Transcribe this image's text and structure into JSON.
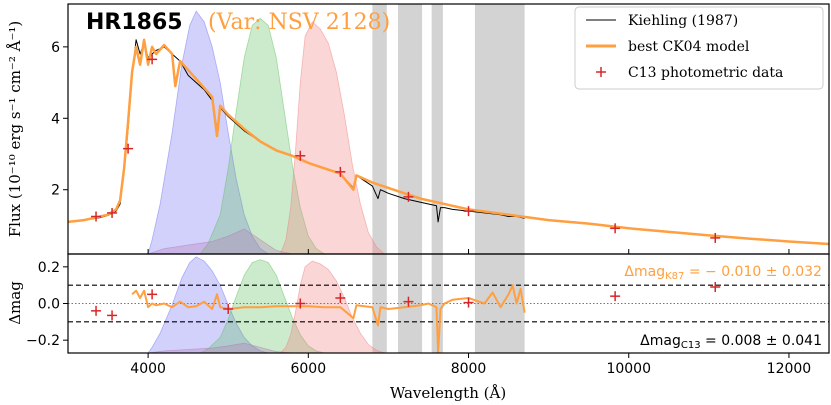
{
  "chart_data": {
    "type": "line",
    "title": "HR1865",
    "subtitle": "(Var: NSV 2128)",
    "xlabel": "Wavelength  (Å)",
    "top_ylabel": "Flux  (10⁻¹⁰ erg s⁻¹ cm⁻² Å⁻¹)",
    "bottom_ylabel": "Δmag",
    "xlim": [
      3000,
      12500
    ],
    "top_ylim": [
      0.2,
      7.2
    ],
    "bottom_ylim": [
      -0.27,
      0.27
    ],
    "x_ticks": [
      4000,
      6000,
      8000,
      10000,
      12000
    ],
    "x_tick_labels": [
      "4000",
      "6000",
      "8000",
      "10000",
      "12000"
    ],
    "top_y_ticks": [
      2,
      4,
      6
    ],
    "top_y_tick_labels": [
      "2",
      "4",
      "6"
    ],
    "bottom_y_ticks": [
      -0.2,
      0.0,
      0.2
    ],
    "bottom_y_tick_labels": [
      "−0.2",
      "0.0",
      "0.2"
    ],
    "legend": {
      "placement": "top-right",
      "entries": [
        {
          "label": "Kiehling (1987)",
          "style": "thin-line",
          "color": "#000000"
        },
        {
          "label": "best CK04 model",
          "style": "thick-line",
          "color": "#ff9f40"
        },
        {
          "label": "C13 photometric data",
          "style": "plus-marker",
          "color": "#d62728"
        }
      ]
    },
    "annotations": {
      "dmag_k87": "Δmag",
      "dmag_k87_sub": "K87",
      "dmag_k87_value": " = − 0.010 ± 0.032",
      "dmag_c13": "Δmag",
      "dmag_c13_sub": "C13",
      "dmag_c13_value": " = 0.008 ± 0.041"
    },
    "residual_band": [
      -0.1,
      0.1
    ],
    "gray_bands": [
      [
        6800,
        6980
      ],
      [
        7120,
        7420
      ],
      [
        7540,
        7680
      ],
      [
        8080,
        8700
      ]
    ],
    "filters": [
      {
        "name": "blue",
        "color": "#6f6ff5",
        "points": [
          [
            4000,
            0.2
          ],
          [
            4050,
            0.6
          ],
          [
            4150,
            1.6
          ],
          [
            4300,
            3.6
          ],
          [
            4420,
            5.5
          ],
          [
            4520,
            6.6
          ],
          [
            4600,
            7.0
          ],
          [
            4700,
            6.7
          ],
          [
            4800,
            6.0
          ],
          [
            4900,
            5.0
          ],
          [
            5000,
            3.6
          ],
          [
            5100,
            2.3
          ],
          [
            5200,
            1.3
          ],
          [
            5300,
            0.7
          ],
          [
            5400,
            0.35
          ],
          [
            5500,
            0.2
          ]
        ]
      },
      {
        "name": "green",
        "color": "#5fbf5f",
        "points": [
          [
            4650,
            0.2
          ],
          [
            4750,
            0.5
          ],
          [
            4900,
            1.3
          ],
          [
            5000,
            2.6
          ],
          [
            5100,
            4.2
          ],
          [
            5200,
            5.7
          ],
          [
            5300,
            6.6
          ],
          [
            5400,
            6.8
          ],
          [
            5500,
            6.6
          ],
          [
            5600,
            5.7
          ],
          [
            5700,
            4.2
          ],
          [
            5800,
            2.7
          ],
          [
            5900,
            1.5
          ],
          [
            6000,
            0.7
          ],
          [
            6100,
            0.35
          ],
          [
            6200,
            0.2
          ]
        ]
      },
      {
        "name": "red",
        "color": "#f08080",
        "points": [
          [
            5650,
            0.2
          ],
          [
            5720,
            0.6
          ],
          [
            5780,
            1.5
          ],
          [
            5840,
            3.1
          ],
          [
            5900,
            5.0
          ],
          [
            5960,
            6.3
          ],
          [
            6050,
            6.7
          ],
          [
            6150,
            6.5
          ],
          [
            6250,
            6.1
          ],
          [
            6350,
            5.3
          ],
          [
            6450,
            4.1
          ],
          [
            6550,
            2.7
          ],
          [
            6650,
            1.6
          ],
          [
            6750,
            0.8
          ],
          [
            6850,
            0.4
          ],
          [
            6950,
            0.2
          ]
        ]
      },
      {
        "name": "violet",
        "color": "#b47ab4",
        "points": [
          [
            4000,
            0.2
          ],
          [
            4200,
            0.35
          ],
          [
            4500,
            0.45
          ],
          [
            4800,
            0.55
          ],
          [
            5000,
            0.7
          ],
          [
            5200,
            0.9
          ],
          [
            5400,
            0.6
          ],
          [
            5600,
            0.3
          ],
          [
            5800,
            0.2
          ]
        ]
      }
    ],
    "series": [
      {
        "name": "Kiehling (1987)",
        "color": "#000000",
        "x": [
          3200,
          3300,
          3400,
          3500,
          3600,
          3650,
          3700,
          3750,
          3800,
          3850,
          3900,
          3950,
          4000,
          4100,
          4200,
          4300,
          4400,
          4500,
          4600,
          4700,
          4800,
          4860,
          4900,
          5000,
          5200,
          5400,
          5600,
          5800,
          6000,
          6200,
          6400,
          6563,
          6600,
          6800,
          6870,
          6900,
          7000,
          7200,
          7400,
          7600,
          7620,
          7650,
          7700,
          7800,
          8000,
          8200,
          8400,
          8500,
          8600,
          8700
        ],
        "y": [
          1.15,
          1.18,
          1.22,
          1.28,
          1.4,
          1.6,
          2.5,
          3.7,
          5.2,
          6.2,
          5.8,
          6.1,
          5.7,
          5.9,
          6.0,
          5.8,
          5.6,
          5.2,
          5.0,
          4.8,
          4.5,
          3.7,
          4.3,
          4.05,
          3.65,
          3.35,
          3.1,
          2.95,
          2.75,
          2.6,
          2.45,
          2.05,
          2.4,
          2.1,
          1.75,
          2.0,
          1.9,
          1.75,
          1.65,
          1.55,
          1.1,
          1.5,
          1.5,
          1.45,
          1.4,
          1.35,
          1.3,
          1.25,
          1.25,
          1.2
        ]
      },
      {
        "name": "best CK04 model",
        "color": "#ff9f40",
        "x": [
          3000,
          3200,
          3300,
          3400,
          3500,
          3600,
          3650,
          3700,
          3750,
          3800,
          3850,
          3900,
          3950,
          4000,
          4050,
          4100,
          4200,
          4300,
          4340,
          4400,
          4500,
          4600,
          4700,
          4800,
          4860,
          4900,
          5000,
          5200,
          5400,
          5600,
          5800,
          6000,
          6200,
          6400,
          6563,
          6600,
          6800,
          7000,
          7200,
          7400,
          7600,
          7800,
          8000,
          8500,
          9000,
          9500,
          10000,
          10500,
          11000,
          11500,
          12000,
          12500
        ],
        "y": [
          1.1,
          1.15,
          1.2,
          1.25,
          1.3,
          1.45,
          1.7,
          2.6,
          3.9,
          5.3,
          6.0,
          5.5,
          6.2,
          5.5,
          6.0,
          5.8,
          6.05,
          5.8,
          4.9,
          5.6,
          5.35,
          5.1,
          4.85,
          4.6,
          3.5,
          4.35,
          4.1,
          3.7,
          3.35,
          3.1,
          2.95,
          2.75,
          2.6,
          2.45,
          2.0,
          2.4,
          2.2,
          2.05,
          1.9,
          1.75,
          1.65,
          1.55,
          1.45,
          1.3,
          1.15,
          1.05,
          0.92,
          0.82,
          0.72,
          0.63,
          0.55,
          0.48
        ]
      }
    ],
    "photometry": {
      "x": [
        3350,
        3550,
        3750,
        4050,
        5900,
        6400,
        7250,
        8000,
        9830,
        11080
      ],
      "y": [
        1.25,
        1.35,
        3.15,
        5.65,
        2.95,
        2.5,
        1.8,
        1.4,
        0.92,
        0.65
      ]
    },
    "residual_photometry": {
      "x": [
        3350,
        3550,
        4050,
        5000,
        5900,
        6400,
        7250,
        8000,
        9830,
        11080
      ],
      "y": [
        -0.04,
        -0.065,
        0.05,
        -0.03,
        0.0,
        0.03,
        0.01,
        0.005,
        0.04,
        0.09
      ]
    },
    "residual_series": {
      "name": "residual",
      "color": "#ff9f40",
      "x": [
        3800,
        3850,
        3900,
        3950,
        4000,
        4050,
        4100,
        4200,
        4300,
        4400,
        4500,
        4600,
        4700,
        4800,
        4860,
        4900,
        5000,
        5200,
        5400,
        5600,
        5800,
        6000,
        6200,
        6400,
        6563,
        6600,
        6800,
        6870,
        6900,
        7000,
        7200,
        7400,
        7500,
        7600,
        7620,
        7650,
        7700,
        7800,
        8000,
        8200,
        8300,
        8400,
        8500,
        8550,
        8600,
        8650,
        8700
      ],
      "y": [
        0.05,
        0.07,
        0.03,
        0.07,
        -0.02,
        0.0,
        -0.01,
        0.0,
        -0.02,
        0.01,
        -0.02,
        -0.015,
        0.01,
        -0.03,
        0.05,
        -0.02,
        -0.03,
        -0.02,
        -0.02,
        -0.015,
        -0.015,
        -0.015,
        -0.02,
        -0.02,
        -0.08,
        -0.01,
        -0.02,
        -0.12,
        -0.02,
        -0.03,
        -0.02,
        -0.01,
        0.0,
        -0.02,
        -0.27,
        -0.03,
        0.0,
        0.02,
        0.03,
        0.0,
        0.06,
        -0.02,
        0.05,
        0.1,
        0.0,
        0.08,
        -0.05
      ]
    }
  }
}
